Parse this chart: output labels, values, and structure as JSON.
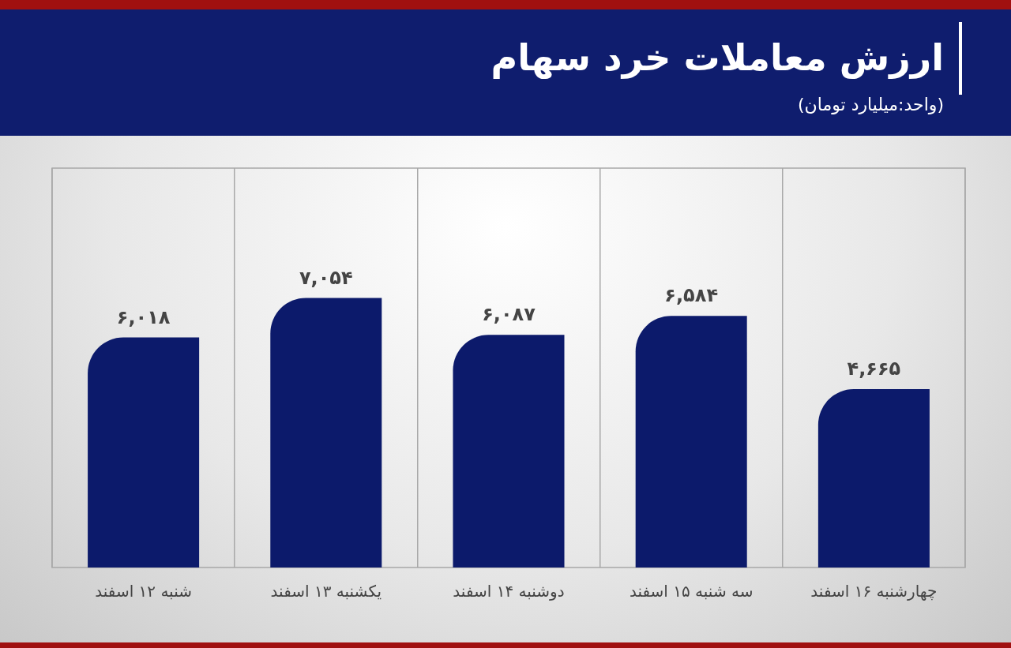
{
  "chart_data": {
    "type": "bar",
    "title": "ارزش معاملات خرد سهام",
    "subtitle": "(واحد:میلیارد تومان)",
    "categories": [
      "شنبه ۱۲ اسفند",
      "یکشنبه ۱۳ اسفند",
      "دوشنبه ۱۴ اسفند",
      "سه شنبه ۱۵ اسفند",
      "چهارشنبه ۱۶ اسفند"
    ],
    "values": [
      6018,
      7054,
      6087,
      6584,
      4665
    ],
    "value_labels": [
      "۶,۰۱۸",
      "۷,۰۵۴",
      "۶,۰۸۷",
      "۶,۵۸۴",
      "۴,۶۶۵"
    ],
    "color": "#0c1a6b",
    "ylim": [
      0,
      10450
    ],
    "tick_labels": "x",
    "grid": "x"
  }
}
